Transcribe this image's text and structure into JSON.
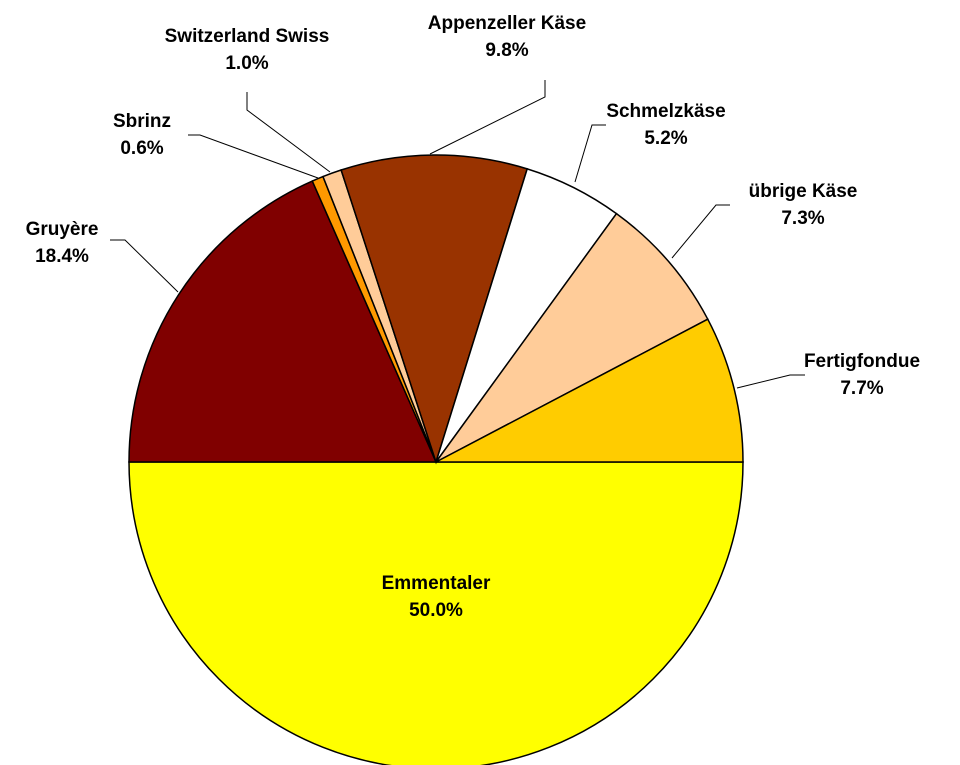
{
  "chart_data": {
    "type": "pie",
    "categories": [
      "Emmentaler",
      "Gruyère",
      "Sbrinz",
      "Switzerland Swiss",
      "Appenzeller Käse",
      "Schmelzkäse",
      "übrige Käse",
      "Fertigfondue"
    ],
    "values": [
      50.0,
      18.4,
      0.6,
      1.0,
      9.8,
      5.2,
      7.3,
      7.7
    ],
    "value_labels": [
      "50.0%",
      "18.4%",
      "0.6%",
      "1.0%",
      "9.8%",
      "5.2%",
      "7.3%",
      "7.7%"
    ],
    "colors": [
      "#FFFF00",
      "#800000",
      "#FF9900",
      "#FFCC99",
      "#993300",
      "#FFFFFF",
      "#FFCC99",
      "#FFCC00"
    ]
  }
}
